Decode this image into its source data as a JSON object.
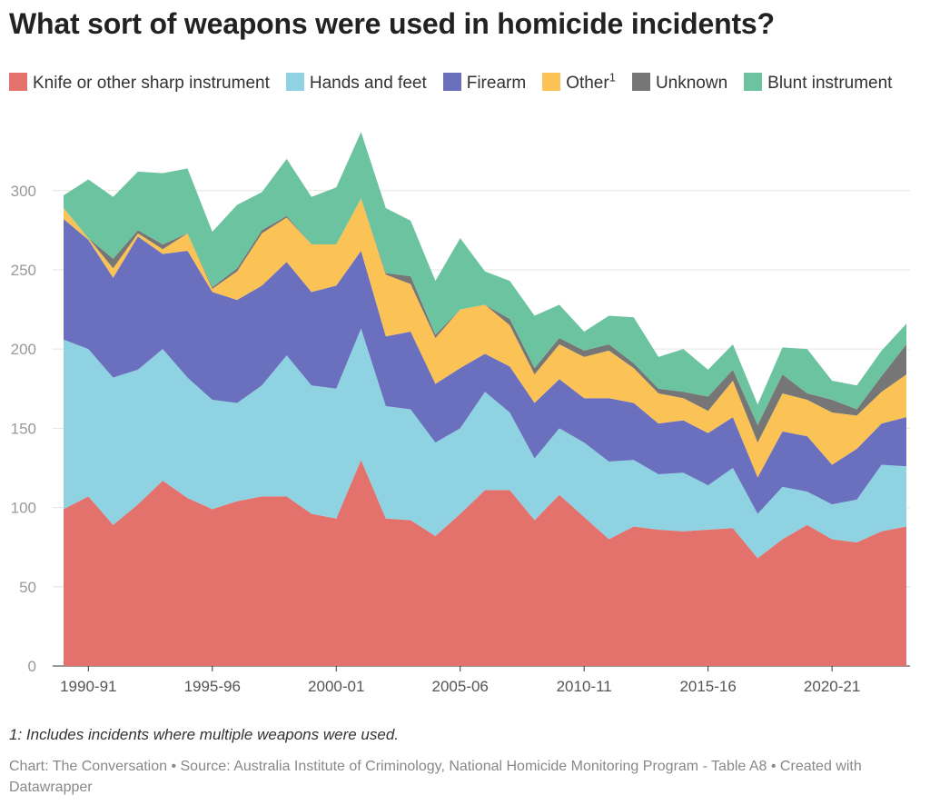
{
  "chart_data": {
    "type": "stacked_area",
    "title": "What sort of weapons were used in homicide incidents?",
    "footnote": "1: Includes incidents where multiple weapons were used.",
    "source": "Chart: The Conversation • Source: Australia Institute of Criminology, National Homicide Monitoring Program - Table A8 • Created with Datawrapper",
    "categories": [
      null,
      "1990-91",
      null,
      null,
      null,
      null,
      "1995-96",
      null,
      null,
      null,
      null,
      "2000-01",
      null,
      null,
      null,
      null,
      "2005-06",
      null,
      null,
      null,
      null,
      "2010-11",
      null,
      null,
      null,
      null,
      "2015-16",
      null,
      null,
      null,
      null,
      "2020-21",
      null,
      null,
      null
    ],
    "ylim": [
      0,
      340
    ],
    "yticks": [
      0,
      50,
      100,
      150,
      200,
      250,
      300
    ],
    "grid": true,
    "series": [
      {
        "name": "Knife or other sharp instrument",
        "color": "#e3716c",
        "values": [
          99,
          107,
          89,
          102,
          117,
          106,
          99,
          104,
          107,
          107,
          96,
          93,
          130,
          93,
          92,
          82,
          96,
          111,
          111,
          92,
          108,
          94,
          80,
          88,
          86,
          85,
          86,
          87,
          68,
          80,
          89,
          80,
          78,
          85,
          88
        ]
      },
      {
        "name": "Hands and feet",
        "color": "#8fd2e1",
        "values": [
          107,
          93,
          93,
          85,
          83,
          76,
          69,
          62,
          70,
          89,
          81,
          82,
          83,
          71,
          70,
          59,
          54,
          62,
          49,
          39,
          42,
          47,
          49,
          42,
          35,
          37,
          28,
          38,
          28,
          33,
          21,
          22,
          27,
          42,
          38
        ]
      },
      {
        "name": "Firearm",
        "color": "#6a70bd",
        "values": [
          76,
          69,
          63,
          84,
          60,
          80,
          68,
          65,
          63,
          59,
          59,
          65,
          49,
          44,
          49,
          37,
          38,
          24,
          29,
          35,
          31,
          28,
          40,
          36,
          32,
          33,
          33,
          32,
          23,
          35,
          35,
          25,
          32,
          26,
          31
        ]
      },
      {
        "name": "Other",
        "superscript": "1",
        "color": "#fbc256",
        "values": [
          7,
          1,
          6,
          2,
          3,
          11,
          2,
          18,
          33,
          28,
          30,
          26,
          33,
          39,
          30,
          29,
          37,
          31,
          26,
          18,
          22,
          26,
          30,
          22,
          19,
          14,
          14,
          23,
          22,
          24,
          23,
          33,
          21,
          20,
          27
        ]
      },
      {
        "name": "Unknown",
        "color": "#767676",
        "values": [
          0,
          0,
          6,
          2,
          3,
          0,
          1,
          2,
          2,
          1,
          0,
          0,
          0,
          1,
          5,
          2,
          0,
          0,
          4,
          4,
          4,
          4,
          4,
          3,
          3,
          4,
          9,
          7,
          11,
          12,
          4,
          8,
          4,
          10,
          19
        ]
      },
      {
        "name": "Blunt instrument",
        "color": "#6cc3a0",
        "values": [
          8,
          37,
          39,
          37,
          45,
          41,
          35,
          40,
          24,
          36,
          30,
          36,
          42,
          41,
          35,
          34,
          45,
          21,
          24,
          33,
          21,
          12,
          18,
          29,
          20,
          27,
          17,
          16,
          13,
          17,
          28,
          12,
          15,
          16,
          13
        ]
      }
    ]
  }
}
